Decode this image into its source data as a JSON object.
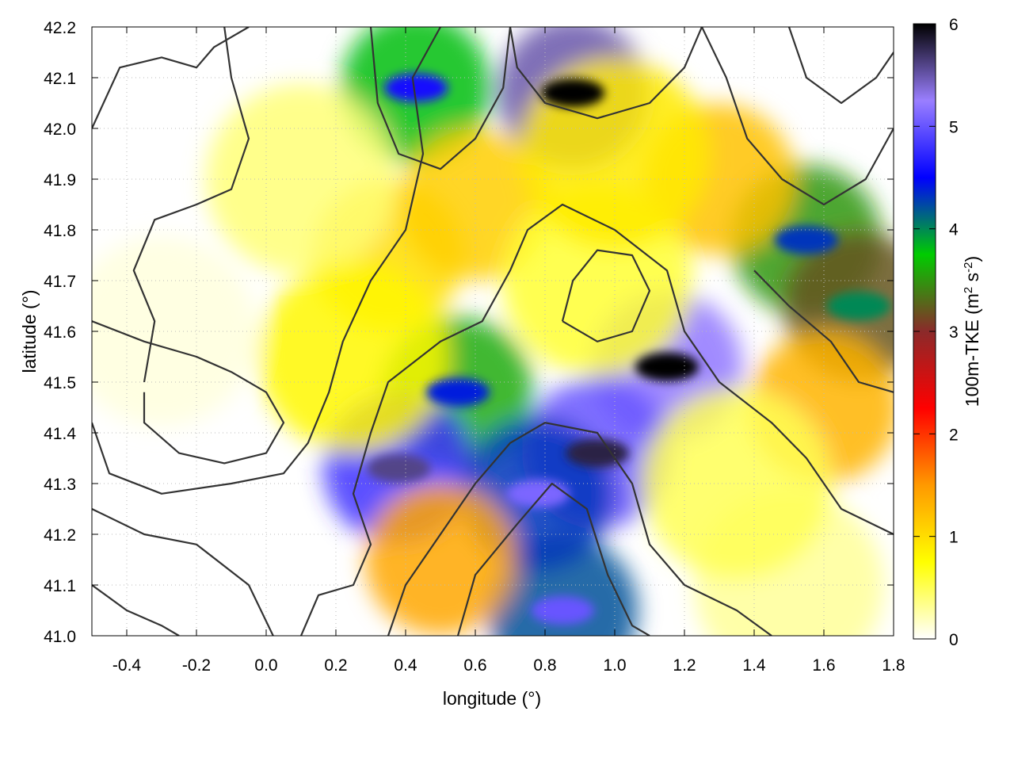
{
  "chart_data": {
    "type": "heatmap",
    "title": "",
    "xlabel": "longitude (°)",
    "ylabel": "latitude (°)",
    "xlim": [
      -0.5,
      1.8
    ],
    "ylim": [
      41.0,
      42.2
    ],
    "xticks": [
      -0.4,
      -0.2,
      0.0,
      0.2,
      0.4,
      0.6,
      0.8,
      1.0,
      1.2,
      1.4,
      1.6,
      1.8
    ],
    "xtick_labels": [
      "-0.4",
      "-0.2",
      "0.0",
      "0.2",
      "0.4",
      "0.6",
      "0.8",
      "1.0",
      "1.2",
      "1.4",
      "1.6",
      "1.8"
    ],
    "yticks": [
      41.0,
      41.1,
      41.2,
      41.3,
      41.4,
      41.5,
      41.6,
      41.7,
      41.8,
      41.9,
      42.0,
      42.1,
      42.2
    ],
    "ytick_labels": [
      "41.0",
      "41.1",
      "41.2",
      "41.3",
      "41.4",
      "41.5",
      "41.6",
      "41.7",
      "41.8",
      "41.9",
      "42.0",
      "42.1",
      "42.2"
    ],
    "grid": true,
    "colorbar": {
      "label": "100m-TKE (m² s⁻²)",
      "label_main": "100m-TKE (m",
      "label_sup1": "2",
      "label_mid": " s",
      "label_sup2": "-2",
      "label_end": ")",
      "range": [
        0,
        6
      ],
      "ticks": [
        0,
        1,
        2,
        3,
        4,
        5,
        6
      ],
      "tick_labels": [
        "0",
        "1",
        "2",
        "3",
        "4",
        "5",
        "6"
      ],
      "palette": [
        "#ffffff",
        "#ffff00",
        "#ff9900",
        "#ff0000",
        "#8b2a2a",
        "#00cc00",
        "#0000ff",
        "#9a7fff",
        "#000000"
      ]
    },
    "features": [
      {
        "lon": 0.55,
        "lat": 41.48,
        "value": 3.6
      },
      {
        "lon": 0.88,
        "lat": 42.07,
        "value": 5.5
      },
      {
        "lon": 0.43,
        "lat": 42.08,
        "value": 3.8
      },
      {
        "lon": 1.15,
        "lat": 41.53,
        "value": 5.2
      },
      {
        "lon": 0.95,
        "lat": 41.36,
        "value": 5.0
      },
      {
        "lon": 0.38,
        "lat": 41.33,
        "value": 4.8
      },
      {
        "lon": 0.85,
        "lat": 41.05,
        "value": 4.2
      },
      {
        "lon": 0.78,
        "lat": 41.28,
        "value": 4.3
      },
      {
        "lon": 1.55,
        "lat": 41.78,
        "value": 3.5
      },
      {
        "lon": 1.7,
        "lat": 41.65,
        "value": 3.2
      },
      {
        "lon": 0.35,
        "lat": 41.75,
        "value": 1.0
      },
      {
        "lon": 0.6,
        "lat": 41.85,
        "value": 1.1
      },
      {
        "lon": 1.3,
        "lat": 41.9,
        "value": 1.2
      },
      {
        "lon": 1.6,
        "lat": 41.45,
        "value": 1.3
      },
      {
        "lon": 0.5,
        "lat": 41.15,
        "value": 1.4
      },
      {
        "lon": 0.95,
        "lat": 41.7,
        "value": 0.6
      },
      {
        "lon": -0.3,
        "lat": 41.6,
        "value": 0.1
      },
      {
        "lon": 1.5,
        "lat": 41.1,
        "value": 0.3
      },
      {
        "lon": 0.1,
        "lat": 41.9,
        "value": 0.4
      },
      {
        "lon": 1.35,
        "lat": 41.3,
        "value": 0.5
      },
      {
        "lon": 1.0,
        "lat": 41.95,
        "value": 0.9
      },
      {
        "lon": 0.25,
        "lat": 41.55,
        "value": 0.8
      }
    ],
    "contours": [
      [
        [
          -0.5,
          42.0
        ],
        [
          -0.42,
          42.12
        ],
        [
          -0.3,
          42.14
        ],
        [
          -0.2,
          42.12
        ],
        [
          -0.15,
          42.16
        ],
        [
          -0.05,
          42.2
        ]
      ],
      [
        [
          -0.12,
          42.2
        ],
        [
          -0.1,
          42.1
        ],
        [
          -0.05,
          41.98
        ],
        [
          -0.1,
          41.88
        ],
        [
          -0.2,
          41.85
        ],
        [
          -0.32,
          41.82
        ],
        [
          -0.38,
          41.72
        ],
        [
          -0.32,
          41.62
        ],
        [
          -0.35,
          41.5
        ]
      ],
      [
        [
          -0.5,
          41.62
        ],
        [
          -0.35,
          41.58
        ],
        [
          -0.2,
          41.55
        ],
        [
          -0.1,
          41.52
        ],
        [
          0.0,
          41.48
        ],
        [
          0.05,
          41.42
        ],
        [
          0.0,
          41.36
        ],
        [
          -0.12,
          41.34
        ],
        [
          -0.25,
          41.36
        ],
        [
          -0.35,
          41.42
        ],
        [
          -0.35,
          41.48
        ]
      ],
      [
        [
          -0.5,
          41.42
        ],
        [
          -0.45,
          41.32
        ],
        [
          -0.3,
          41.28
        ],
        [
          -0.1,
          41.3
        ],
        [
          0.05,
          41.32
        ],
        [
          0.12,
          41.38
        ],
        [
          0.18,
          41.48
        ],
        [
          0.22,
          41.58
        ],
        [
          0.3,
          41.7
        ],
        [
          0.4,
          41.8
        ],
        [
          0.45,
          41.95
        ],
        [
          0.42,
          42.1
        ],
        [
          0.5,
          42.2
        ]
      ],
      [
        [
          -0.5,
          41.25
        ],
        [
          -0.35,
          41.2
        ],
        [
          -0.2,
          41.18
        ],
        [
          -0.05,
          41.1
        ],
        [
          0.02,
          41.0
        ]
      ],
      [
        [
          0.1,
          41.0
        ],
        [
          0.15,
          41.08
        ],
        [
          0.25,
          41.1
        ],
        [
          0.3,
          41.18
        ],
        [
          0.25,
          41.28
        ],
        [
          0.3,
          41.4
        ],
        [
          0.35,
          41.5
        ],
        [
          0.5,
          41.58
        ],
        [
          0.62,
          41.62
        ],
        [
          0.7,
          41.72
        ],
        [
          0.75,
          41.8
        ],
        [
          0.85,
          41.85
        ],
        [
          1.0,
          41.8
        ],
        [
          1.15,
          41.72
        ],
        [
          1.2,
          41.6
        ],
        [
          1.3,
          41.5
        ],
        [
          1.45,
          41.42
        ],
        [
          1.55,
          41.35
        ],
        [
          1.65,
          41.25
        ],
        [
          1.8,
          41.2
        ]
      ],
      [
        [
          0.35,
          41.0
        ],
        [
          0.4,
          41.1
        ],
        [
          0.5,
          41.2
        ],
        [
          0.6,
          41.3
        ],
        [
          0.7,
          41.38
        ],
        [
          0.8,
          41.42
        ],
        [
          0.95,
          41.4
        ],
        [
          1.05,
          41.3
        ],
        [
          1.1,
          41.18
        ],
        [
          1.2,
          41.1
        ],
        [
          1.35,
          41.05
        ],
        [
          1.45,
          41.0
        ]
      ],
      [
        [
          0.55,
          41.0
        ],
        [
          0.6,
          41.12
        ],
        [
          0.72,
          41.22
        ],
        [
          0.82,
          41.3
        ],
        [
          0.92,
          41.25
        ],
        [
          0.98,
          41.12
        ],
        [
          1.05,
          41.02
        ],
        [
          1.1,
          41.0
        ]
      ],
      [
        [
          0.7,
          42.2
        ],
        [
          0.72,
          42.12
        ],
        [
          0.8,
          42.05
        ],
        [
          0.95,
          42.02
        ],
        [
          1.1,
          42.05
        ],
        [
          1.2,
          42.12
        ],
        [
          1.25,
          42.2
        ]
      ],
      [
        [
          1.25,
          42.2
        ],
        [
          1.32,
          42.1
        ],
        [
          1.38,
          41.98
        ],
        [
          1.48,
          41.9
        ],
        [
          1.6,
          41.85
        ],
        [
          1.72,
          41.9
        ],
        [
          1.8,
          42.0
        ]
      ],
      [
        [
          0.3,
          42.2
        ],
        [
          0.32,
          42.05
        ],
        [
          0.38,
          41.95
        ],
        [
          0.5,
          41.92
        ],
        [
          0.6,
          41.98
        ],
        [
          0.68,
          42.08
        ],
        [
          0.7,
          42.2
        ]
      ],
      [
        [
          1.4,
          41.72
        ],
        [
          1.5,
          41.65
        ],
        [
          1.62,
          41.58
        ],
        [
          1.7,
          41.5
        ],
        [
          1.8,
          41.48
        ]
      ],
      [
        [
          0.85,
          41.62
        ],
        [
          0.95,
          41.58
        ],
        [
          1.05,
          41.6
        ],
        [
          1.1,
          41.68
        ],
        [
          1.05,
          41.75
        ],
        [
          0.95,
          41.76
        ],
        [
          0.88,
          41.7
        ],
        [
          0.85,
          41.62
        ]
      ],
      [
        [
          -0.5,
          41.1
        ],
        [
          -0.4,
          41.05
        ],
        [
          -0.3,
          41.02
        ],
        [
          -0.25,
          41.0
        ]
      ],
      [
        [
          1.5,
          42.2
        ],
        [
          1.55,
          42.1
        ],
        [
          1.65,
          42.05
        ],
        [
          1.75,
          42.1
        ],
        [
          1.8,
          42.15
        ]
      ]
    ]
  }
}
